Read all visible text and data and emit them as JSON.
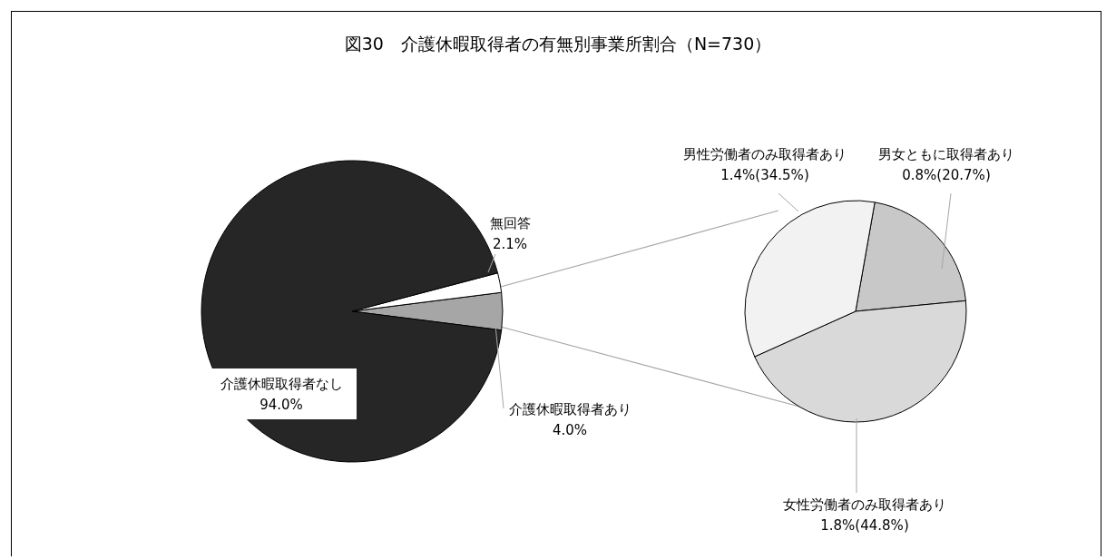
{
  "chart_data": [
    {
      "type": "pie",
      "title": "図30　介護休暇取得者の有無別事業所割合（N=730）",
      "categories": [
        "介護休暇取得者あり",
        "無回答",
        "介護休暇取得者なし"
      ],
      "values": [
        4.0,
        2.1,
        94.0
      ],
      "colors": [
        "#a6a6a6",
        "#ffffff",
        "#262626"
      ],
      "value_labels": [
        "4.0%",
        "2.1%",
        "94.0%"
      ]
    },
    {
      "type": "pie",
      "categories": [
        "男女ともに取得者あり",
        "女性労働者のみ取得者あり",
        "男性労働者のみ取得者あり"
      ],
      "values": [
        20.7,
        44.8,
        34.5
      ],
      "colors": [
        "#c8c8c8",
        "#d9d9d9",
        "#f2f2f2"
      ],
      "value_labels": [
        "0.8%(20.7%)",
        "1.8%(44.8%)",
        "1.4%(34.5%)"
      ]
    }
  ]
}
